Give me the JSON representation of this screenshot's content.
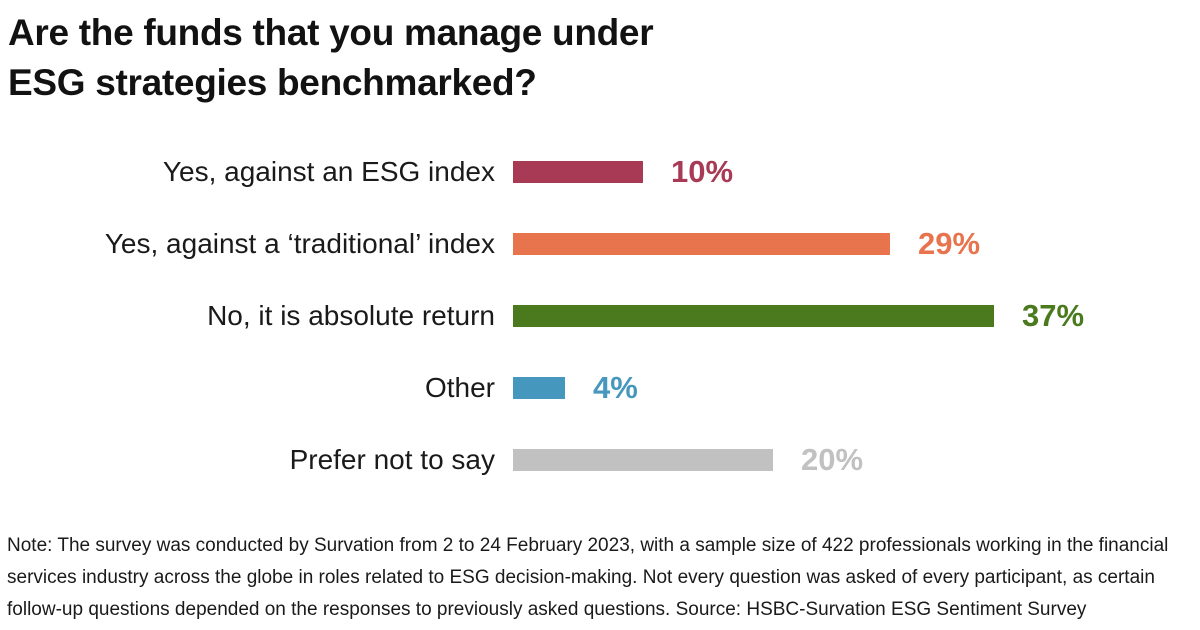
{
  "title": {
    "line1": "Are the funds that you manage under",
    "line2": "ESG strategies benchmarked?"
  },
  "chart_data": {
    "type": "bar",
    "orientation": "horizontal",
    "title": "Are the funds that you manage under ESG strategies benchmarked?",
    "categories": [
      "Yes, against an ESG index",
      "Yes, against a ‘traditional’ index",
      "No, it is absolute return",
      "Other",
      "Prefer not to say"
    ],
    "values": [
      10,
      29,
      37,
      4,
      20
    ],
    "value_suffix": "%",
    "xlim": [
      0,
      40
    ],
    "grid": false,
    "legend": false,
    "rows": [
      {
        "label": "Yes, against an ESG index",
        "value": 10,
        "display": "10%",
        "color": "#A83A56"
      },
      {
        "label": "Yes, against a ‘traditional’ index",
        "value": 29,
        "display": "29%",
        "color": "#E8744D"
      },
      {
        "label": "No, it is absolute return",
        "value": 37,
        "display": "37%",
        "color": "#4A7A1D"
      },
      {
        "label": "Other",
        "value": 4,
        "display": "4%",
        "color": "#4697BE"
      },
      {
        "label": "Prefer not to say",
        "value": 20,
        "display": "20%",
        "color": "#C1C1C1"
      }
    ]
  },
  "note": {
    "line1": "Note: The survey was conducted by Survation from 2 to 24 February 2023, with a sample size of 422 professionals working in the financial",
    "line2": "services industry across the globe in roles related to ESG decision-making. Not every question was asked of every participant, as certain",
    "line3": "follow-up questions depended on the responses to previously asked questions. Source: HSBC-Survation ESG Sentiment Survey"
  }
}
